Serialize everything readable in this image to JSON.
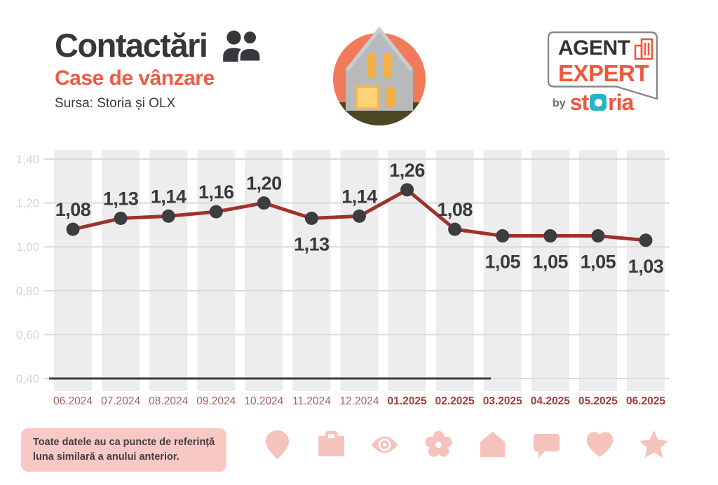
{
  "header": {
    "title": "Contactări",
    "subtitle": "Case de vânzare",
    "source": "Sursa: Storia și OLX"
  },
  "logo": {
    "line1": "AGENT",
    "line2": "EXPERT",
    "by": "by",
    "brand_pre": "st",
    "brand_post": "ria",
    "colors": {
      "orange": "#f0573b",
      "dark": "#33322f",
      "teal": "#29b4c3",
      "bubble_border": "#88878b"
    }
  },
  "note": {
    "line1": "Toate datele au ca puncte de referință",
    "line2": "luna similară a anului anterior."
  },
  "footer_icons": [
    "pin-icon",
    "briefcase-icon",
    "eye-icon",
    "flower-icon",
    "house-icon",
    "speech-bubble-icon",
    "heart-icon",
    "star-icon"
  ],
  "chart_data": {
    "type": "line",
    "title": "Contactări – Case de vânzare",
    "xlabel": "",
    "ylabel": "",
    "categories": [
      "06.2024",
      "07.2024",
      "08.2024",
      "09.2024",
      "10.2024",
      "11.2024",
      "12.2024",
      "01.2025",
      "02.2025",
      "03.2025",
      "04.2025",
      "05.2025",
      "06.2025"
    ],
    "values": [
      1.08,
      1.13,
      1.14,
      1.16,
      1.2,
      1.13,
      1.14,
      1.26,
      1.08,
      1.05,
      1.05,
      1.05,
      1.03
    ],
    "point_labels": [
      "1,08",
      "1,13",
      "1,14",
      "1,16",
      "1,20",
      "1,13",
      "1,14",
      "1,26",
      "1,08",
      "1,05",
      "1,05",
      "1,05",
      "1,03"
    ],
    "label_below_indices": [
      5,
      9,
      10,
      11,
      12
    ],
    "bold_x_indices": [
      7,
      8,
      9,
      10,
      11,
      12
    ],
    "ylim": [
      0.4,
      1.4
    ],
    "y_ticks": [
      {
        "v": 1.4,
        "label": "1,40"
      },
      {
        "v": 1.2,
        "label": "1,20"
      },
      {
        "v": 1.0,
        "label": "1,00"
      },
      {
        "v": 0.8,
        "label": "0,80"
      },
      {
        "v": 0.6,
        "label": "0,60"
      },
      {
        "v": 0.4,
        "label": "0,40"
      }
    ],
    "grid": true,
    "legend": "none",
    "colors": {
      "line": "#9e332c",
      "marker": "#3d3c3e",
      "label": "#3a393d",
      "band": "#ededed",
      "grid": "#dadada",
      "axis": "#3b3a3e",
      "ytick": "#d4d4d4",
      "x2024": "#a4605a",
      "x2025": "#9c4038"
    }
  }
}
